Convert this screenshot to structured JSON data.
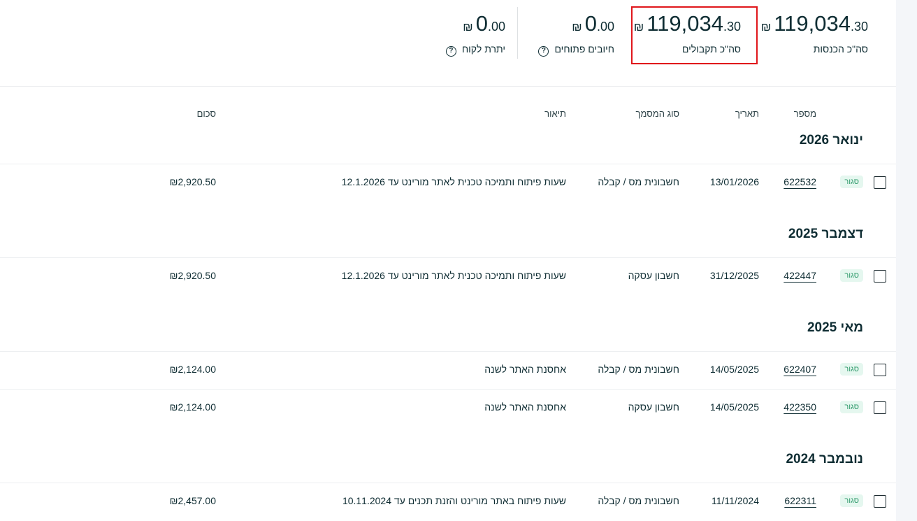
{
  "summary": [
    {
      "label": "סה\"כ הכנסות",
      "integer": "119,034",
      "decimal": ".30",
      "currency": "₪",
      "help": false
    },
    {
      "label": "סה\"כ תקבולים",
      "integer": "119,034",
      "decimal": ".30",
      "currency": "₪",
      "help": false,
      "highlighted": true
    },
    {
      "label": "חיובים פתוחים",
      "integer": "0",
      "decimal": ".00",
      "currency": "₪",
      "help": true
    },
    {
      "label": "יתרת לקוח",
      "integer": "0",
      "decimal": ".00",
      "currency": "₪",
      "help": true
    }
  ],
  "highlight_color": "#e0161b",
  "table": {
    "headers": {
      "number": "מספר",
      "date": "תאריך",
      "type": "סוג המסמך",
      "description": "תיאור",
      "amount": "סכום"
    },
    "groups": [
      {
        "title": "ינואר 2026",
        "rows": [
          {
            "status": "סגור",
            "number": "622532",
            "date": "13/01/2026",
            "type": "חשבונית מס / קבלה",
            "description": "שעות פיתוח ותמיכה טכנית לאתר מורינט עד 12.1.2026",
            "amount": "₪2,920.50"
          }
        ]
      },
      {
        "title": "דצמבר 2025",
        "rows": [
          {
            "status": "סגור",
            "number": "422447",
            "date": "31/12/2025",
            "type": "חשבון עסקה",
            "description": "שעות פיתוח ותמיכה טכנית לאתר מורינט עד 12.1.2026",
            "amount": "₪2,920.50"
          }
        ]
      },
      {
        "title": "מאי 2025",
        "rows": [
          {
            "status": "סגור",
            "number": "622407",
            "date": "14/05/2025",
            "type": "חשבונית מס / קבלה",
            "description": "אחסנת האתר לשנה",
            "amount": "₪2,124.00"
          },
          {
            "status": "סגור",
            "number": "422350",
            "date": "14/05/2025",
            "type": "חשבון עסקה",
            "description": "אחסנת האתר לשנה",
            "amount": "₪2,124.00"
          }
        ]
      },
      {
        "title": "נובמבר 2024",
        "rows": [
          {
            "status": "סגור",
            "number": "622311",
            "date": "11/11/2024",
            "type": "חשבונית מס / קבלה",
            "description": "שעות פיתוח באתר מורינט והזנת תכנים עד 10.11.2024",
            "amount": "₪2,457.00"
          }
        ]
      }
    ]
  }
}
